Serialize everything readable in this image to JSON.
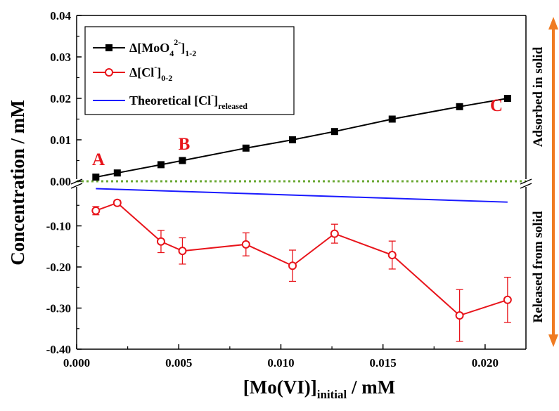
{
  "chart_data": {
    "type": "line",
    "title": "",
    "xlabel": {
      "main": "[Mo(VI)]",
      "sub": "initial",
      "tail": " / mM"
    },
    "ylabel": "Concentration / mM",
    "x_ticks": [
      "0.000",
      "0.005",
      "0.010",
      "0.015",
      "0.020"
    ],
    "x_tick_values": [
      0,
      0.005,
      0.01,
      0.015,
      0.02
    ],
    "xlim": [
      0,
      0.022
    ],
    "upper_axis": {
      "ylim": [
        0,
        0.04
      ],
      "ticks": [
        "0.00",
        "0.01",
        "0.02",
        "0.03",
        "0.04"
      ],
      "tick_values": [
        0,
        0.01,
        0.02,
        0.03,
        0.04
      ]
    },
    "lower_axis": {
      "ylim": [
        -0.4,
        0
      ],
      "ticks": [
        "-0.10",
        "-0.20",
        "-0.30",
        "-0.40"
      ],
      "tick_values": [
        -0.1,
        -0.2,
        -0.3,
        -0.4
      ]
    },
    "series": [
      {
        "name": "Δ[MoO4 2-]1-2",
        "legend": {
          "pre": "Δ[MoO",
          "sub1": "4",
          "sup": "2-",
          "mid": "]",
          "sub2": "1-2"
        },
        "color": "#000000",
        "marker": "square-filled",
        "axis": "upper",
        "x": [
          0.00094,
          0.00199,
          0.00413,
          0.00518,
          0.00829,
          0.01057,
          0.01263,
          0.01545,
          0.01875,
          0.0211
        ],
        "y": [
          0.001,
          0.002,
          0.004,
          0.005,
          0.008,
          0.01,
          0.012,
          0.015,
          0.018,
          0.02
        ]
      },
      {
        "name": "Δ[Cl-]0-2",
        "legend": {
          "pre": "Δ[Cl",
          "sup": "-",
          "mid": "]",
          "sub2": "0-2"
        },
        "color": "#e8141b",
        "marker": "circle-open",
        "axis": "lower",
        "x": [
          0.00094,
          0.00199,
          0.00413,
          0.00518,
          0.00829,
          0.01057,
          0.01263,
          0.01545,
          0.01875,
          0.0211
        ],
        "y": [
          -0.063,
          -0.044,
          -0.138,
          -0.161,
          -0.145,
          -0.197,
          -0.119,
          -0.171,
          -0.318,
          -0.28
        ],
        "error": [
          0.01,
          0.006,
          0.027,
          0.032,
          0.028,
          0.038,
          0.023,
          0.034,
          0.063,
          0.055
        ]
      },
      {
        "name": "Theoretical [Cl-]released",
        "legend": {
          "pre": "Theoretical [Cl",
          "sup": "-",
          "mid": "]",
          "sub2": "released"
        },
        "color": "#1a1aff",
        "marker": "none",
        "axis": "lower",
        "x": [
          0.00094,
          0.0211
        ],
        "y": [
          -0.0094,
          -0.0422
        ]
      }
    ],
    "reference_line": {
      "y": 0,
      "style": "dotted",
      "color": "#6aa833"
    },
    "annotations": [
      {
        "text": "A",
        "color": "#e8141b"
      },
      {
        "text": "B",
        "color": "#e8141b"
      },
      {
        "text": "C",
        "color": "#e8141b"
      }
    ],
    "side_labels": {
      "upper": "Adsorbed in solid",
      "lower": "Released from solid",
      "arrow_color": "#f07b22"
    },
    "legend_position": "top-left",
    "grid": false
  }
}
